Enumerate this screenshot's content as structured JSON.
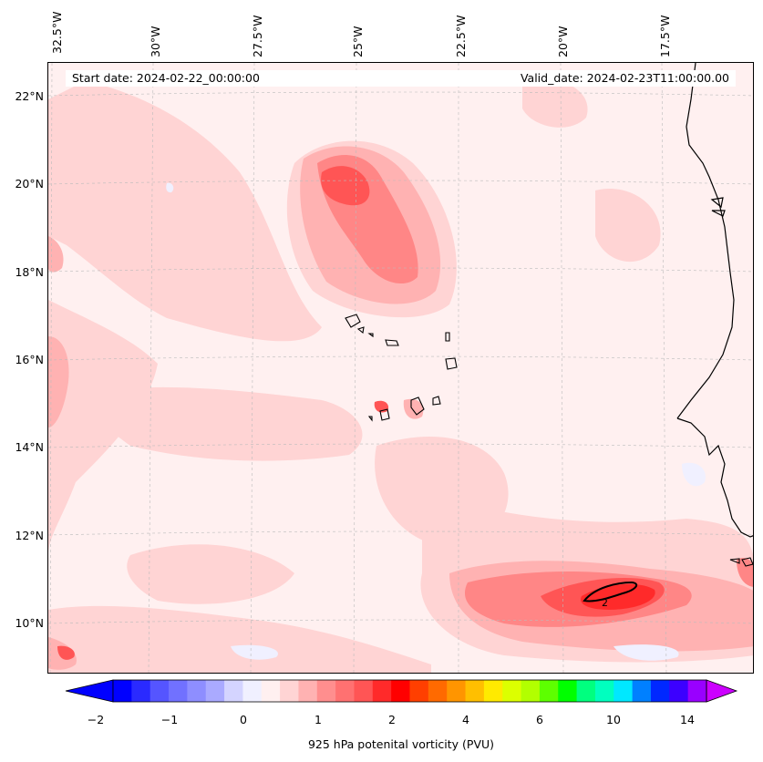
{
  "map": {
    "projection": "conic",
    "region": "Eastern Atlantic / West Africa coast",
    "lon_ticks": [
      "32.5°W",
      "30°W",
      "27.5°W",
      "25°W",
      "22.5°W",
      "20°W",
      "17.5°W"
    ],
    "lat_ticks": [
      "22°N",
      "20°N",
      "18°N",
      "16°N",
      "14°N",
      "12°N",
      "10°N"
    ],
    "gridlines": true,
    "field": "925 hPa potential vorticity",
    "contour_label": "2",
    "colors": {
      "background": "#fff0f0",
      "light": "#ffd4d4",
      "medium": "#ffb2b2",
      "strong": "#ff8686",
      "stronger": "#ff5555",
      "max": "#ff2a2a",
      "coast": "#000000"
    }
  },
  "header": {
    "start_date": "Start date: 2024-02-22_00:00:00",
    "valid_date": "Valid_date: 2024-02-23T11:00:00.00"
  },
  "colorbar": {
    "label": "925 hPa potenital vorticity (PVU)",
    "ticks": [
      "−2",
      "−1",
      "0",
      "1",
      "2",
      "4",
      "6",
      "10",
      "14"
    ],
    "colors": [
      "#0000ff",
      "#2a2aff",
      "#5555ff",
      "#7171ff",
      "#8e8eff",
      "#aaaaff",
      "#d4d4ff",
      "#f0f0ff",
      "#fff0f0",
      "#ffd4d4",
      "#ffb2b2",
      "#ff8e8e",
      "#ff7171",
      "#ff5555",
      "#ff2a2a",
      "#ff0000",
      "#ff3f00",
      "#ff6a00",
      "#ff9500",
      "#ffbf00",
      "#ffea00",
      "#dcff00",
      "#b2ff00",
      "#5dff00",
      "#00ff00",
      "#00ff7f",
      "#00ffbf",
      "#00e8ff",
      "#0080ff",
      "#0028ff",
      "#3c00ff",
      "#9900ff"
    ],
    "extend_low": "#0000ff",
    "extend_high": "#cc00ff"
  }
}
